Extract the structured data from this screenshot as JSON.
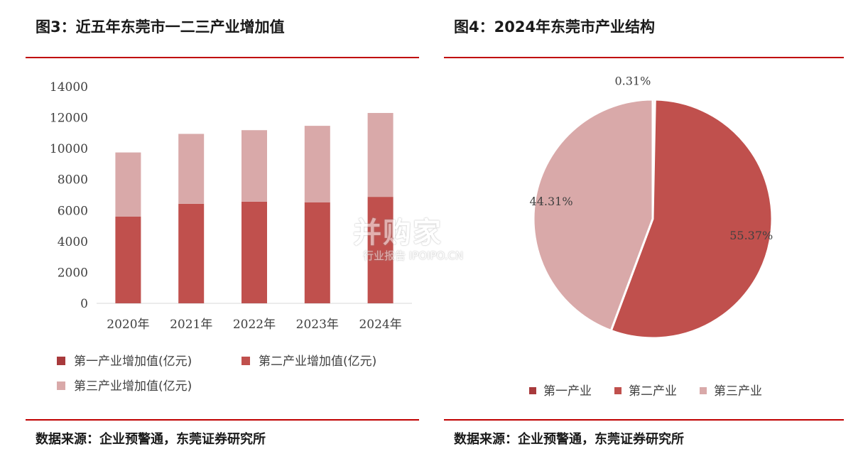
{
  "left": {
    "title": "图3：近五年东莞市一二三产业增加值",
    "source": "数据来源：企业预警通，东莞证券研究所"
  },
  "right": {
    "title": "图4：2024年东莞市产业结构",
    "source": "数据来源：企业预警通，东莞证券研究所"
  },
  "watermark": {
    "main": "并购家",
    "sub": "行业报告 IPOIPO.CN"
  },
  "chart_data": [
    {
      "type": "bar",
      "stacked": true,
      "title": "",
      "categories": [
        "2020年",
        "2021年",
        "2022年",
        "2023年",
        "2024年"
      ],
      "series": [
        {
          "name": "第一产业增加值(亿元)",
          "color": "#a83a3c",
          "values": [
            30,
            30,
            30,
            30,
            30
          ]
        },
        {
          "name": "第二产业增加值(亿元)",
          "color": "#c0504d",
          "values": [
            5570,
            6400,
            6540,
            6500,
            6850
          ]
        },
        {
          "name": "第三产业增加值(亿元)",
          "color": "#d9a9a9",
          "values": [
            4150,
            4520,
            4620,
            4940,
            5420
          ]
        }
      ],
      "yticks": [
        "0",
        "2000",
        "4000",
        "6000",
        "8000",
        "10000",
        "12000",
        "14000"
      ],
      "ylim": [
        0,
        14000
      ],
      "grid": false,
      "legend_position": "bottom"
    },
    {
      "type": "pie",
      "title": "",
      "slices": [
        {
          "name": "第一产业",
          "value": 0.31,
          "label": "0.31%",
          "color": "#a83a3c"
        },
        {
          "name": "第二产业",
          "value": 55.37,
          "label": "55.37%",
          "color": "#c0504d"
        },
        {
          "name": "第三产业",
          "value": 44.31,
          "label": "44.31%",
          "color": "#d9a9a9"
        }
      ],
      "legend_position": "bottom"
    }
  ]
}
